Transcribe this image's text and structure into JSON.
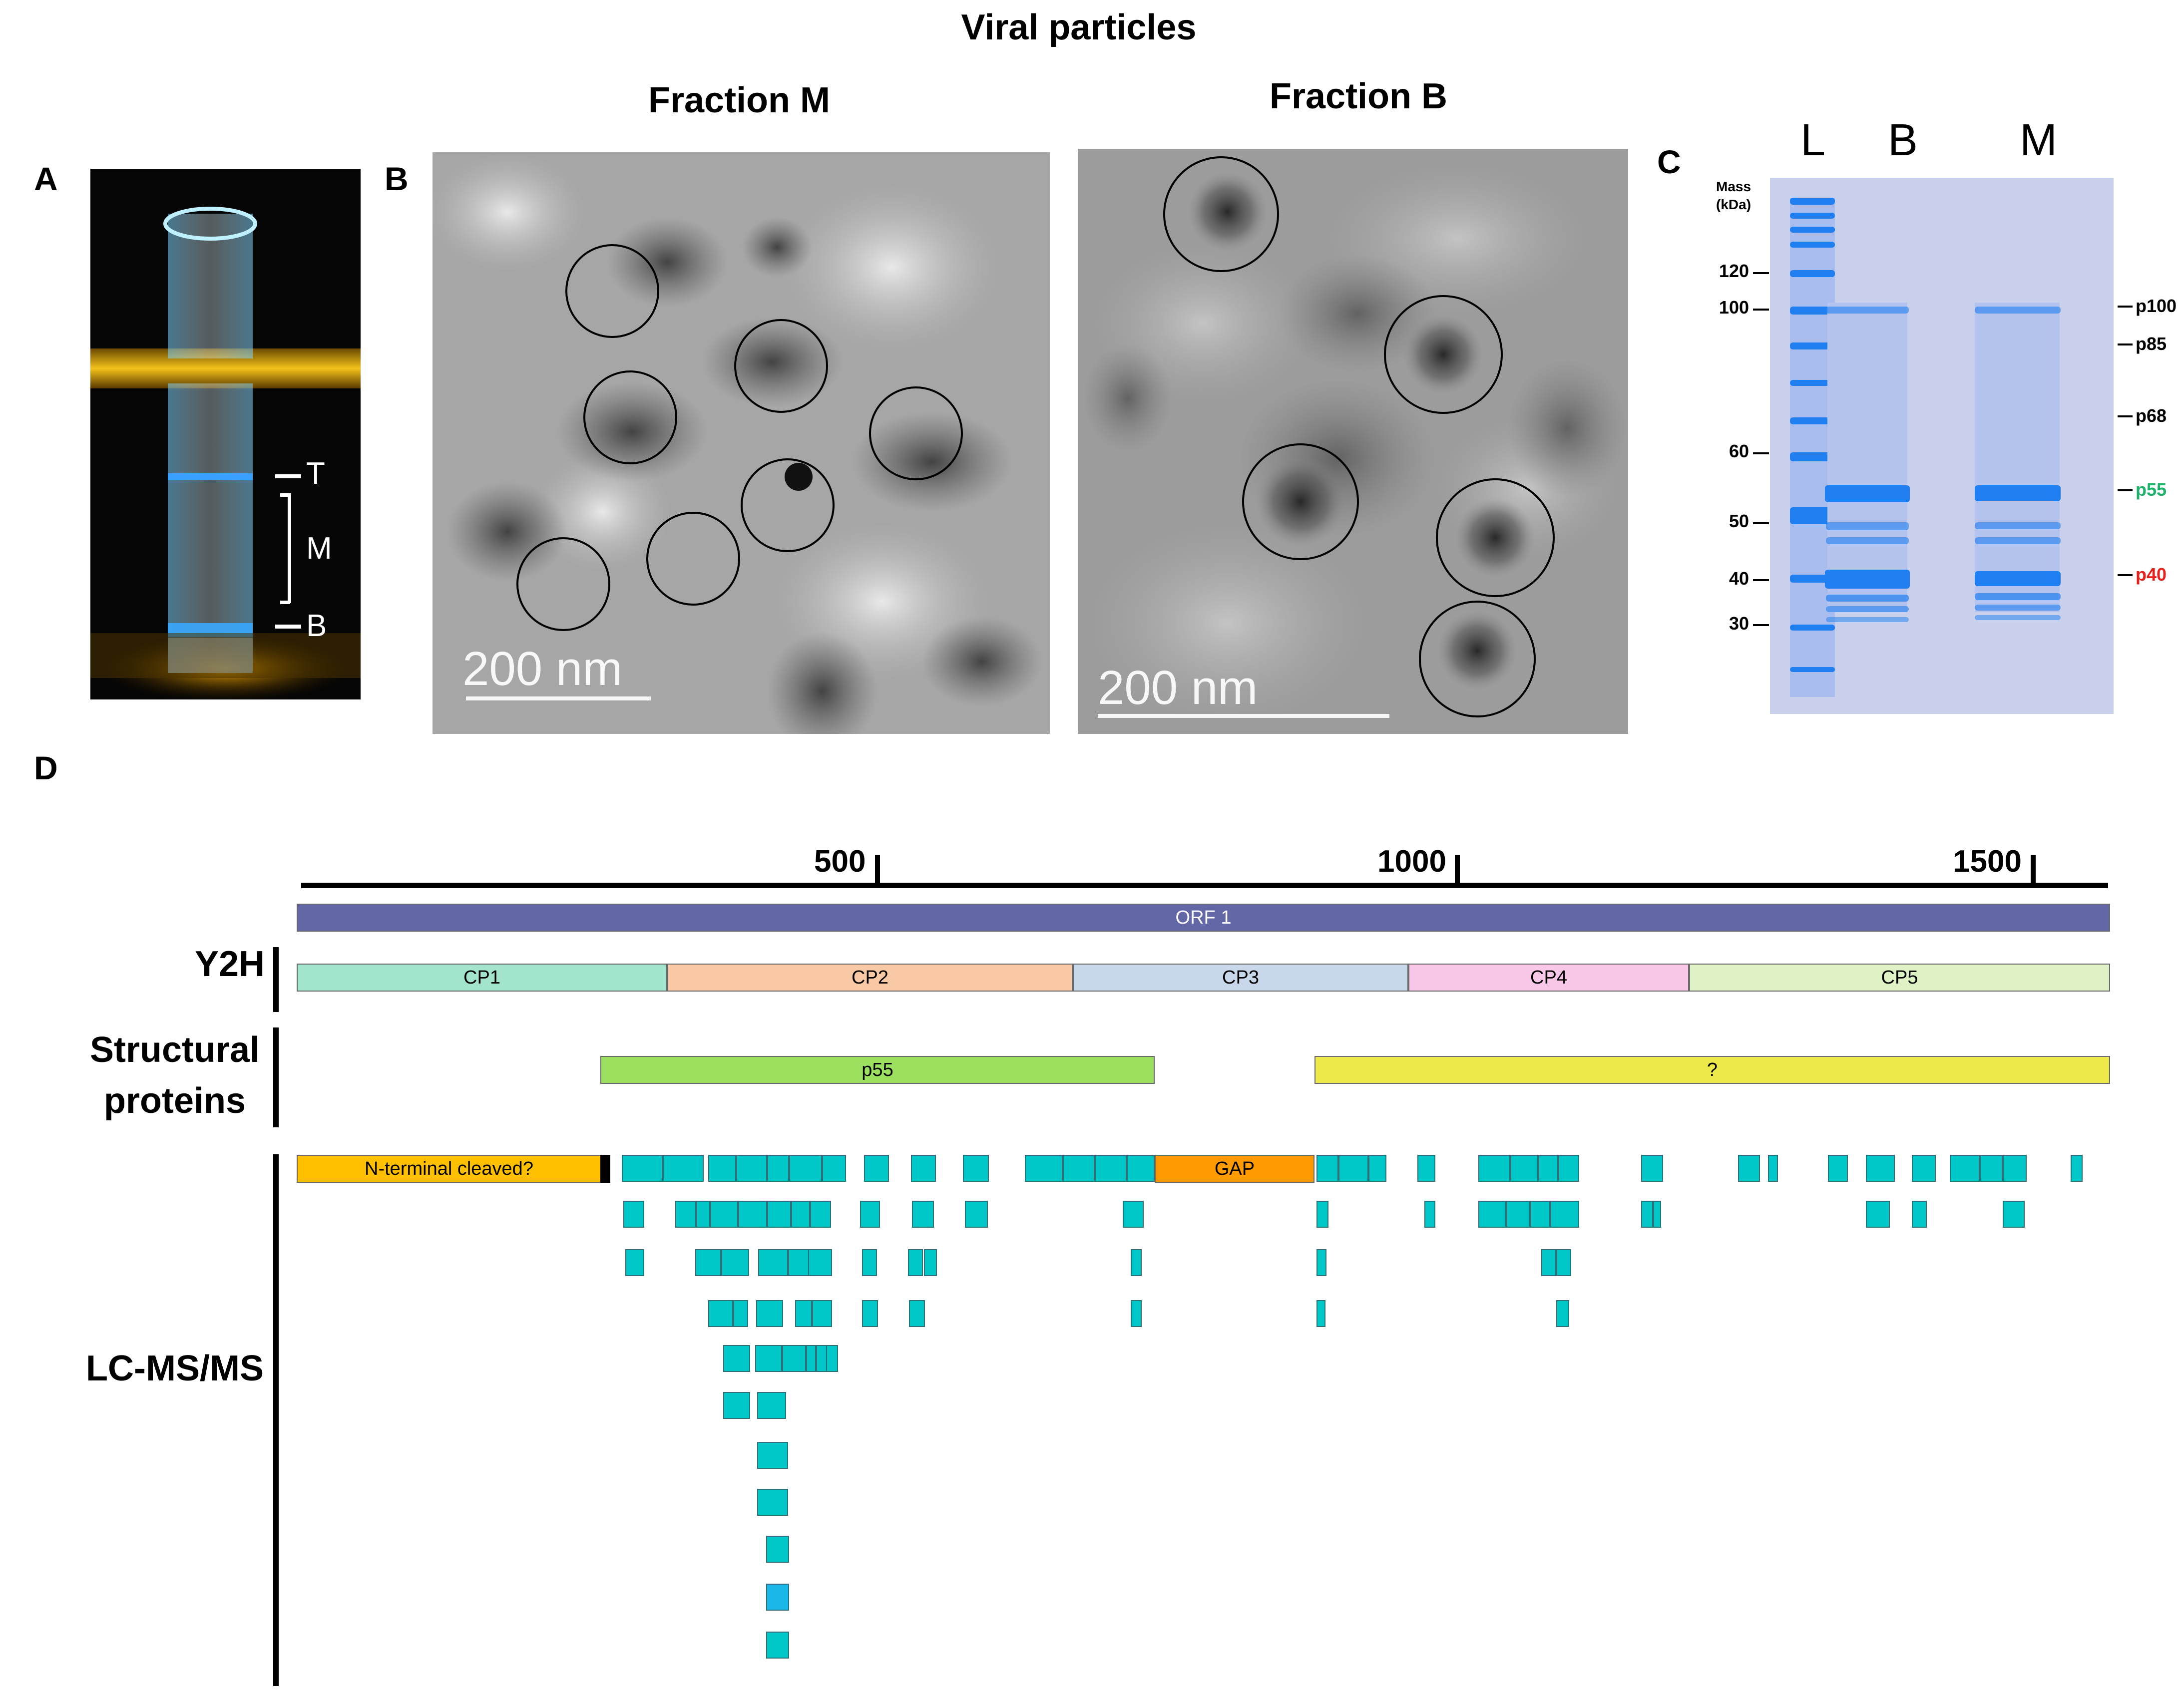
{
  "header": {
    "title": "Viral particles"
  },
  "panel_letters": {
    "a": "A",
    "b": "B",
    "c": "C",
    "d": "D"
  },
  "panel_a": {
    "labels": {
      "top": "T",
      "middle": "M",
      "bottom": "B"
    }
  },
  "panel_b": {
    "fraction_m_title": "Fraction M",
    "fraction_b_title": "Fraction B",
    "scalebar_m": "200 nm",
    "scalebar_b": "200 nm"
  },
  "panel_c": {
    "lanes": [
      "L",
      "B",
      "M"
    ],
    "mass_title_line1": "Mass",
    "mass_title_line2": "(kDa)",
    "markers": [
      "120",
      "100",
      "60",
      "50",
      "40",
      "30"
    ],
    "proteins": [
      {
        "label": "p100",
        "color": "#000000"
      },
      {
        "label": "p85",
        "color": "#000000"
      },
      {
        "label": "p68",
        "color": "#000000"
      },
      {
        "label": "p55",
        "color": "#1db36a"
      },
      {
        "label": "p40",
        "color": "#e8201c"
      }
    ]
  },
  "panel_d": {
    "axis_ticks": [
      "500",
      "1000",
      "1500"
    ],
    "orf": "ORF 1",
    "rows": {
      "y2h": "Y2H",
      "structural_line1": "Structural",
      "structural_line2": "proteins",
      "lcms": "LC-MS/MS"
    },
    "cps": [
      "CP1",
      "CP2",
      "CP3",
      "CP4",
      "CP5"
    ],
    "structural": {
      "p55": "p55",
      "unknown": "?"
    },
    "nterm": "N-terminal cleaved?",
    "gap": "GAP"
  },
  "colors": {
    "orf": "#6467a6",
    "cp1": "#a3e4cc",
    "cp2": "#f9c9a6",
    "cp3": "#c8d7ea",
    "cp4": "#f9c8e8",
    "cp5": "#def2c6",
    "p55": "#9be05e",
    "unknown": "#ede94a",
    "nterm": "#ffc000",
    "gap": "#ff9a00",
    "peptide": "#00c8c8"
  }
}
